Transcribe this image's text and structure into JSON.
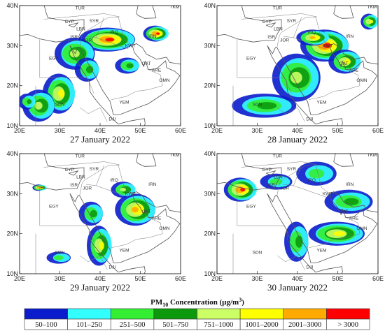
{
  "panels": [
    {
      "caption": "27 January 2022"
    },
    {
      "caption": "28 January 2022"
    },
    {
      "caption": "29 January 2022"
    },
    {
      "caption": "30 January 2022"
    }
  ],
  "lat_ticks": [
    "10N",
    "20N",
    "30N",
    "40N"
  ],
  "lon_ticks": [
    "20E",
    "30E",
    "40E",
    "50E",
    "60E"
  ],
  "country_labels": [
    "TUR",
    "CYP",
    "SYR",
    "LBN",
    "ISR",
    "JOR",
    "IRQ",
    "EGY",
    "SDN",
    "YEM",
    "OMN",
    "ARE",
    "DJI",
    "KWT",
    "QAT",
    "IRN",
    "TKM"
  ],
  "legend": {
    "title": [
      "PM",
      "10",
      " Concentration (μg/m",
      "3",
      ")"
    ],
    "items": [
      {
        "label": "50–100",
        "color": "#0a1ccc"
      },
      {
        "label": "101–250",
        "color": "#33ffff"
      },
      {
        "label": "251–500",
        "color": "#33ee33"
      },
      {
        "label": "501–750",
        "color": "#0c990c"
      },
      {
        "label": "751–1000",
        "color": "#ccff66"
      },
      {
        "label": "1001–2000",
        "color": "#ffff00"
      },
      {
        "label": "2001–3000",
        "color": "#ffaa00"
      },
      {
        "label": "> 3000",
        "color": "#ff0000"
      }
    ]
  }
}
